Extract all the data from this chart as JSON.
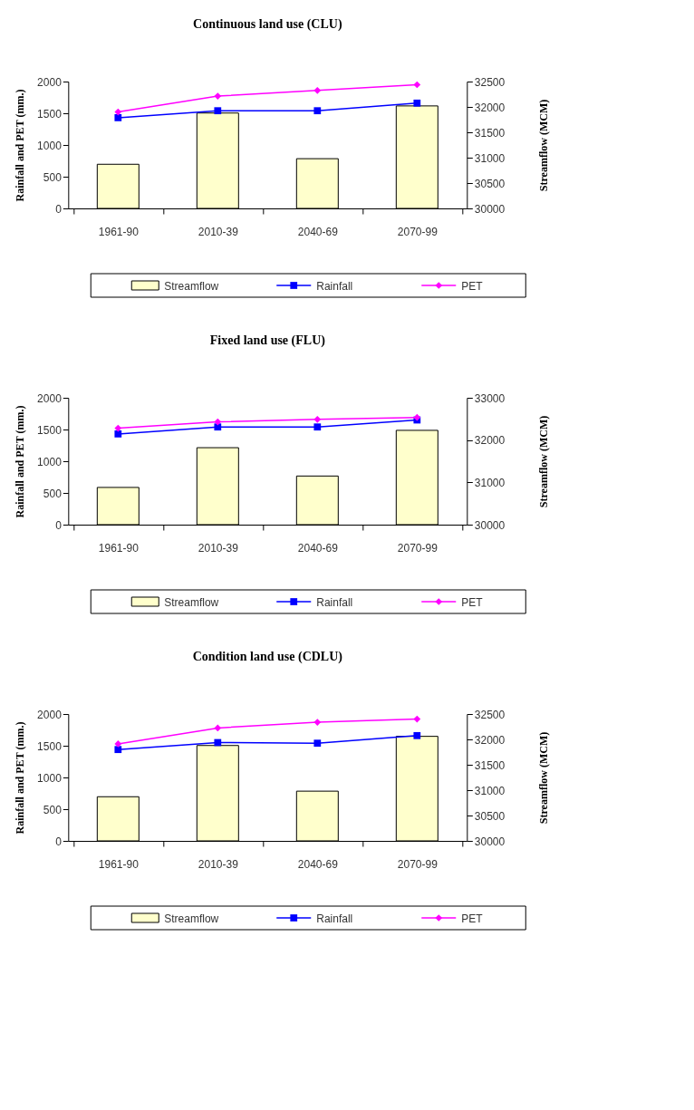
{
  "chart_data": [
    {
      "type": "bar",
      "title": "Continuous land use (CLU)",
      "ylabel": "Rainfall and PET (mm.)",
      "y2label": "Streamflow (MCM)",
      "categories": [
        "1961-90",
        "2010-39",
        "2040-69",
        "2070-99"
      ],
      "ylim": [
        0,
        2000
      ],
      "yticks": [
        0,
        500,
        1000,
        1500,
        2000
      ],
      "y2lim": [
        30000,
        32500
      ],
      "y2ticks": [
        30000,
        30500,
        31000,
        31500,
        32000,
        32500
      ],
      "legend": "bottom",
      "series": [
        {
          "name": "Streamflow",
          "axis": "y2",
          "color": "#ffffcc",
          "values": [
            30870,
            31880,
            30980,
            32020
          ]
        },
        {
          "name": "Rainfall",
          "type": "line",
          "axis": "y",
          "color": "#0000ff",
          "marker": "square",
          "values": [
            1430,
            1540,
            1540,
            1660
          ]
        },
        {
          "name": "PET",
          "type": "line",
          "axis": "y",
          "color": "#ff00ff",
          "marker": "diamond",
          "values": [
            1520,
            1770,
            1860,
            1950
          ]
        }
      ]
    },
    {
      "type": "bar",
      "title": "Fixed land use (FLU)",
      "ylabel": "Rainfall and PET (mm.)",
      "y2label": "Streamflow (MCM)",
      "categories": [
        "1961-90",
        "2010-39",
        "2040-69",
        "2070-99"
      ],
      "ylim": [
        0,
        2000
      ],
      "yticks": [
        0,
        500,
        1000,
        1500,
        2000
      ],
      "y2lim": [
        30000,
        33000
      ],
      "y2ticks": [
        30000,
        31000,
        32000,
        33000
      ],
      "legend": "bottom",
      "series": [
        {
          "name": "Streamflow",
          "axis": "y2",
          "color": "#ffffcc",
          "values": [
            30880,
            31820,
            31150,
            32230
          ]
        },
        {
          "name": "Rainfall",
          "type": "line",
          "axis": "y",
          "color": "#0000ff",
          "marker": "square",
          "values": [
            1430,
            1540,
            1540,
            1650
          ]
        },
        {
          "name": "PET",
          "type": "line",
          "axis": "y",
          "color": "#ff00ff",
          "marker": "diamond",
          "values": [
            1520,
            1620,
            1660,
            1690
          ]
        }
      ]
    },
    {
      "type": "bar",
      "title": "Condition land use (CDLU)",
      "ylabel": "Rainfall and PET (mm.)",
      "y2label": "Streamflow (MCM)",
      "categories": [
        "1961-90",
        "2010-39",
        "2040-69",
        "2070-99"
      ],
      "ylim": [
        0,
        2000
      ],
      "yticks": [
        0,
        500,
        1000,
        1500,
        2000
      ],
      "y2lim": [
        30000,
        32500
      ],
      "y2ticks": [
        30000,
        30500,
        31000,
        31500,
        32000,
        32500
      ],
      "legend": "bottom",
      "series": [
        {
          "name": "Streamflow",
          "axis": "y2",
          "color": "#ffffcc",
          "values": [
            30870,
            31880,
            30980,
            32060
          ]
        },
        {
          "name": "Rainfall",
          "type": "line",
          "axis": "y",
          "color": "#0000ff",
          "marker": "square",
          "values": [
            1440,
            1550,
            1540,
            1660
          ]
        },
        {
          "name": "PET",
          "type": "line",
          "axis": "y",
          "color": "#ff00ff",
          "marker": "diamond",
          "values": [
            1530,
            1780,
            1870,
            1920
          ]
        }
      ]
    }
  ]
}
